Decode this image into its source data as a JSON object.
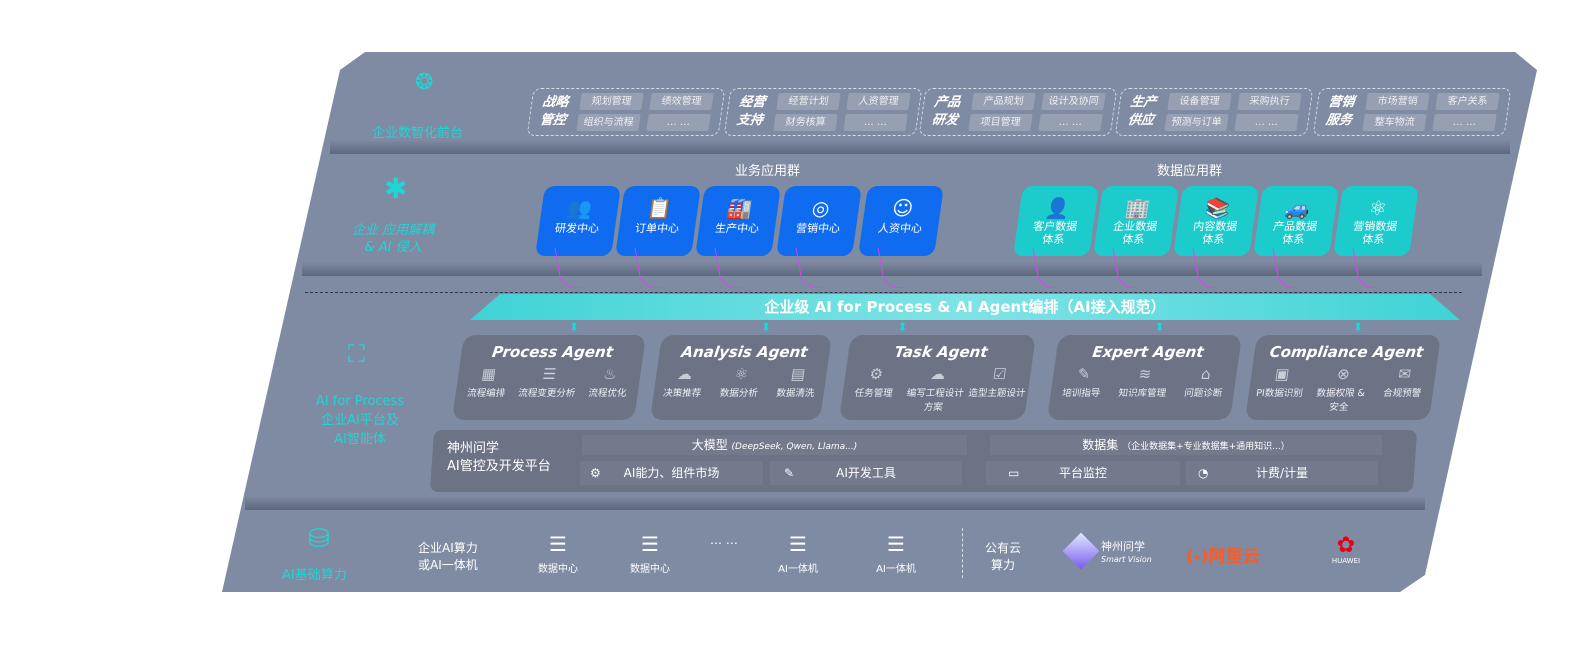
{
  "layers": {
    "front": {
      "label": "企业数智化前台",
      "icon": "brain-icon"
    },
    "apps": {
      "label_line1": "企业 应用解耦",
      "label_line2": "& AI 侵入",
      "icon": "molecule-icon"
    },
    "ai": {
      "label_line1": "AI for Process",
      "label_line2": "企业AI平台及",
      "label_line3": "AI智能体",
      "icon": "face-scan-icon"
    },
    "compute": {
      "label": "AI基础算力",
      "icon": "database-icon"
    }
  },
  "front_groups": [
    {
      "title": "战略管控",
      "tags": [
        "规划管理",
        "绩效管理",
        "组织与流程",
        "… …"
      ]
    },
    {
      "title": "经营支持",
      "tags": [
        "经营计划",
        "人资管理",
        "财务核算",
        "… …"
      ]
    },
    {
      "title": "产品研发",
      "tags": [
        "产品规划",
        "设计及协同",
        "项目管理",
        "… …"
      ]
    },
    {
      "title": "生产供应",
      "tags": [
        "设备管理",
        "采购执行",
        "预测与订单",
        "… …"
      ]
    },
    {
      "title": "营销服务",
      "tags": [
        "市场营销",
        "客户关系",
        "整车物流",
        "… …"
      ]
    }
  ],
  "business_apps": {
    "title": "业务应用群",
    "items": [
      {
        "label": "研发中心",
        "icon": "users-icon"
      },
      {
        "label": "订单中心",
        "icon": "clipboard-icon"
      },
      {
        "label": "生产中心",
        "icon": "factory-icon"
      },
      {
        "label": "营销中心",
        "icon": "target-icon"
      },
      {
        "label": "人资中心",
        "icon": "person-icon"
      }
    ]
  },
  "data_apps": {
    "title": "数据应用群",
    "items": [
      {
        "label": "客户数据体系",
        "icon": "user-icon"
      },
      {
        "label": "企业数据体系",
        "icon": "building-icon"
      },
      {
        "label": "内容数据体系",
        "icon": "books-icon"
      },
      {
        "label": "产品数据体系",
        "icon": "car-icon"
      },
      {
        "label": "营销数据体系",
        "icon": "atom-icon"
      }
    ]
  },
  "banner": "企业级 AI for Process & AI Agent编排（AI接入规范）",
  "agents": [
    {
      "title": "Process Agent",
      "items": [
        "流程编排",
        "流程变更分析",
        "流程优化"
      ]
    },
    {
      "title": "Analysis Agent",
      "items": [
        "决策推荐",
        "数据分析",
        "数据清洗"
      ]
    },
    {
      "title": "Task Agent",
      "items": [
        "任务管理",
        "编写工程设计方案",
        "造型主题设计"
      ]
    },
    {
      "title": "Expert Agent",
      "items": [
        "培训指导",
        "知识库管理",
        "问题诊断"
      ]
    },
    {
      "title": "Compliance Agent",
      "items": [
        "PI数据识别",
        "数据权限 & 安全",
        "合规预警"
      ]
    }
  ],
  "platform": {
    "name_line1": "神州问学",
    "name_line2": "AI管控及开发平台",
    "llm": "大模型",
    "llm_note": "(DeepSeek, Qwen, Llama...)",
    "market": "AI能力、组件市场",
    "devtools": "AI开发工具",
    "dataset": "数据集",
    "dataset_note": "（企业数据集+专业数据集+通用知识...）",
    "monitor": "平台监控",
    "billing": "计费/计量"
  },
  "compute": {
    "enterprise_line1": "企业AI算力",
    "enterprise_line2": "或AI一体机",
    "servers": [
      "数据中心",
      "数据中心",
      "AI一体机",
      "AI一体机"
    ],
    "ellipsis": "… …",
    "public_line1": "公有云",
    "public_line2": "算力",
    "vendors": {
      "smartvision_cn": "神州问学",
      "smartvision_en": "Smart Vision",
      "aliyun": "阿里云",
      "huawei": "HUAWEI"
    }
  },
  "colors": {
    "background": "#7f8aa3",
    "business_tile": "#0f6cf0",
    "data_tile": "#1ccccc",
    "accent": "#1fd6d6",
    "arrow": "#e040fb"
  }
}
